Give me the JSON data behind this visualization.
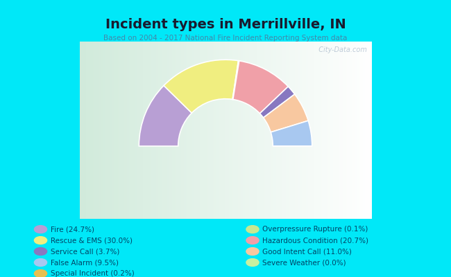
{
  "title": "Incident types in Merrillville, IN",
  "subtitle": "Based on 2004 - 2017 National Fire Incident Reporting System data",
  "bg_cyan": "#00e8f8",
  "bg_chart_left": "#d4eadc",
  "bg_chart_right": "#f0f8f0",
  "categories": [
    "Fire",
    "Rescue & EMS",
    "Special Incident",
    "Overpressure Rupture",
    "Hazardous Condition",
    "Service Call",
    "Good Intent Call",
    "False Alarm",
    "Severe Weather"
  ],
  "values": [
    24.7,
    30.0,
    0.2,
    0.1,
    20.7,
    3.7,
    11.0,
    9.5,
    0.0
  ],
  "colors": [
    "#b89fd4",
    "#f0ee80",
    "#e8c050",
    "#c8e890",
    "#f0a0a8",
    "#8878c0",
    "#f8c8a0",
    "#a8c8f0",
    "#c8f0a0"
  ],
  "legend_order": [
    0,
    1,
    7,
    8,
    5,
    3,
    4,
    6,
    2
  ],
  "legend_labels": [
    "Fire (24.7%)",
    "Rescue & EMS (30.0%)",
    "Service Call (3.7%)",
    "False Alarm (9.5%)",
    "Special Incident (0.2%)",
    "Overpressure Rupture (0.1%)",
    "Hazardous Condition (20.7%)",
    "Good Intent Call (11.0%)",
    "Severe Weather (0.0%)"
  ],
  "legend_colors": [
    "#b89fd4",
    "#f0ee80",
    "#8878c0",
    "#a8c8f0",
    "#e8c050",
    "#c8e890",
    "#f0a0a8",
    "#f8c8a0",
    "#c8f0a0"
  ],
  "watermark": "  City-Data.com"
}
